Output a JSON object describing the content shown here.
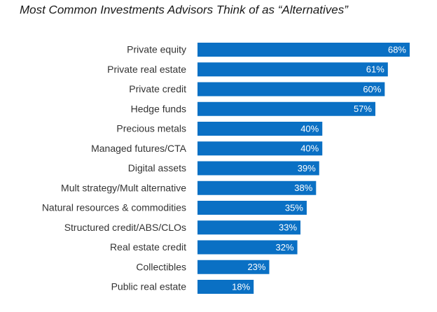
{
  "chart_data": {
    "type": "bar",
    "orientation": "horizontal",
    "title": "Most Common Investments Advisors Think of as “Alternatives”",
    "categories": [
      "Private equity",
      "Private real estate",
      "Private credit",
      "Hedge funds",
      "Precious metals",
      "Managed futures/CTA",
      "Digital assets",
      "Mult strategy/Mult alternative",
      "Natural resources & commodities",
      "Structured credit/ABS/CLOs",
      "Real estate credit",
      "Collectibles",
      "Public real estate"
    ],
    "values": [
      68,
      61,
      60,
      57,
      40,
      40,
      39,
      38,
      35,
      33,
      32,
      23,
      18
    ],
    "value_labels": [
      "68%",
      "61%",
      "60%",
      "57%",
      "40%",
      "40%",
      "39%",
      "38%",
      "35%",
      "33%",
      "32%",
      "23%",
      "18%"
    ],
    "color": "#0a70c4"
  }
}
